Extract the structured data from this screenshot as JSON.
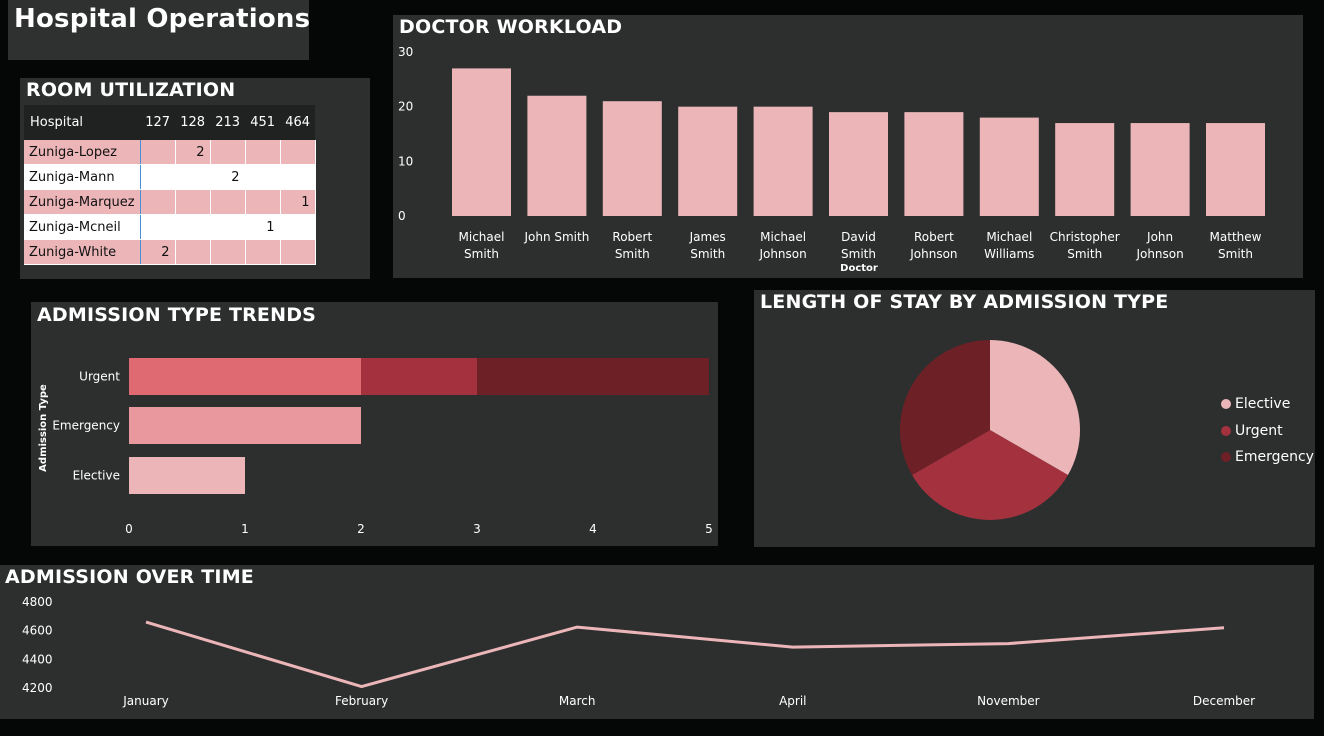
{
  "dashboard": {
    "title": "Hospital Operations"
  },
  "colors": {
    "light_pink": "#ecb6b9",
    "medium_pink": "#e9989d",
    "salmon": "#e06a72",
    "red": "#a3323e",
    "dark_red": "#6d2126"
  },
  "room": {
    "title": "ROOM UTILIZATION",
    "columns": [
      "Hospital",
      "127",
      "128",
      "213",
      "451",
      "464"
    ],
    "rows": [
      {
        "name": "Zuniga-Lopez",
        "cells": [
          "",
          "2",
          "",
          "",
          ""
        ]
      },
      {
        "name": "Zuniga-Mann",
        "cells": [
          "",
          "",
          "2",
          "",
          ""
        ]
      },
      {
        "name": "Zuniga-Marquez",
        "cells": [
          "",
          "",
          "",
          "",
          "1"
        ]
      },
      {
        "name": "Zuniga-Mcneil",
        "cells": [
          "",
          "",
          "",
          "1",
          ""
        ]
      },
      {
        "name": "Zuniga-White",
        "cells": [
          "2",
          "",
          "",
          "",
          ""
        ]
      }
    ]
  },
  "workload": {
    "title": "DOCTOR WORKLOAD",
    "chart_data": {
      "type": "bar",
      "categories": [
        "Michael Smith",
        "John Smith",
        "Robert Smith",
        "James Smith",
        "Michael Johnson",
        "David Smith",
        "Robert Johnson",
        "Michael Williams",
        "Christopher Smith",
        "John Johnson",
        "Matthew Smith"
      ],
      "values": [
        27,
        22,
        21,
        20,
        20,
        19,
        19,
        18,
        17,
        17,
        17
      ],
      "xlabel": "Doctor",
      "ylabel": "",
      "ylim": [
        0,
        30
      ],
      "yticks": [
        "0",
        "10",
        "20",
        "30"
      ],
      "grid": false
    }
  },
  "admission_trends": {
    "title": "ADMISSION TYPE TRENDS",
    "chart_data": {
      "type": "bar",
      "orientation": "horizontal",
      "stacked": true,
      "categories": [
        "Urgent",
        "Emergency",
        "Elective"
      ],
      "segments": [
        [
          2,
          1,
          2
        ],
        [
          2
        ],
        [
          1
        ]
      ],
      "segment_colors": [
        [
          "#e06a72",
          "#a3323e",
          "#6d2126"
        ],
        [
          "#e9989d"
        ],
        [
          "#ecb6b9"
        ]
      ],
      "ylabel": "Admission Type",
      "xlabel": "",
      "xlim": [
        0,
        5
      ],
      "xticks": [
        "0",
        "1",
        "2",
        "3",
        "4",
        "5"
      ],
      "grid": false
    }
  },
  "length_of_stay": {
    "title": "LENGTH OF STAY BY ADMISSION TYPE",
    "chart_data": {
      "type": "pie",
      "labels": [
        "Elective",
        "Urgent",
        "Emergency"
      ],
      "values": [
        33.3,
        33.3,
        33.3
      ],
      "colors": [
        "#ecb6b9",
        "#a3323e",
        "#6d2126"
      ],
      "legend_position": "right"
    }
  },
  "admission_time": {
    "title": "ADMISSION OVER TIME",
    "chart_data": {
      "type": "line",
      "x": [
        "January",
        "February",
        "March",
        "April",
        "November",
        "December"
      ],
      "y": [
        4660,
        4210,
        4625,
        4485,
        4510,
        4620
      ],
      "ylim": [
        4200,
        4800
      ],
      "yticks": [
        "4200",
        "4400",
        "4600",
        "4800"
      ],
      "ylabel": "",
      "xlabel": "",
      "color": "#ecb6b9",
      "grid": false
    }
  }
}
